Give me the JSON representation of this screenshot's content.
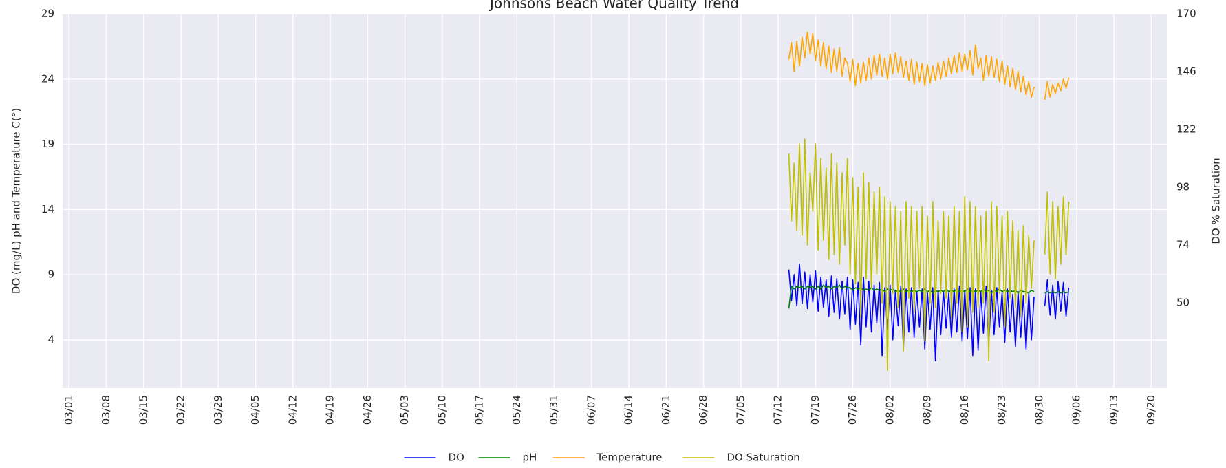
{
  "chart_data": {
    "type": "line",
    "title": "Johnsons Beach Water Quality Trend",
    "ylabel": "DO (mg/L) pH and Temperature C(°)",
    "y2label": "DO % Saturation",
    "grid": true,
    "legend": "bottom",
    "background": "#eaeaf2",
    "xlim": [
      -1.2,
      205.9
    ],
    "xticks": [
      {
        "value": 0,
        "label": "03/01"
      },
      {
        "value": 7,
        "label": "03/08"
      },
      {
        "value": 14,
        "label": "03/15"
      },
      {
        "value": 21,
        "label": "03/22"
      },
      {
        "value": 28,
        "label": "03/29"
      },
      {
        "value": 35,
        "label": "04/05"
      },
      {
        "value": 42,
        "label": "04/12"
      },
      {
        "value": 49,
        "label": "04/19"
      },
      {
        "value": 56,
        "label": "04/26"
      },
      {
        "value": 63,
        "label": "05/03"
      },
      {
        "value": 70,
        "label": "05/10"
      },
      {
        "value": 77,
        "label": "05/17"
      },
      {
        "value": 84,
        "label": "05/24"
      },
      {
        "value": 91,
        "label": "05/31"
      },
      {
        "value": 98,
        "label": "06/07"
      },
      {
        "value": 105,
        "label": "06/14"
      },
      {
        "value": 112,
        "label": "06/21"
      },
      {
        "value": 119,
        "label": "06/28"
      },
      {
        "value": 126,
        "label": "07/05"
      },
      {
        "value": 133,
        "label": "07/12"
      },
      {
        "value": 140,
        "label": "07/19"
      },
      {
        "value": 147,
        "label": "07/26"
      },
      {
        "value": 154,
        "label": "08/02"
      },
      {
        "value": 161,
        "label": "08/09"
      },
      {
        "value": 168,
        "label": "08/16"
      },
      {
        "value": 175,
        "label": "08/23"
      },
      {
        "value": 182,
        "label": "08/30"
      },
      {
        "value": 189,
        "label": "09/06"
      },
      {
        "value": 196,
        "label": "09/13"
      },
      {
        "value": 203,
        "label": "09/20"
      }
    ],
    "ylim": [
      0.3,
      29
    ],
    "yticks": [
      4,
      9,
      14,
      19,
      24,
      29
    ],
    "y2lim": [
      14.6,
      170
    ],
    "y2ticks": [
      50,
      74,
      98,
      122,
      146,
      170
    ],
    "x": [
      135,
      135.5,
      136,
      136.5,
      137,
      137.5,
      138,
      138.5,
      139,
      139.5,
      140,
      140.5,
      141,
      141.5,
      142,
      142.5,
      143,
      143.5,
      144,
      144.5,
      145,
      145.5,
      146,
      146.5,
      147,
      147.5,
      148,
      148.5,
      149,
      149.5,
      150,
      150.5,
      151,
      151.5,
      152,
      152.5,
      153,
      153.5,
      154,
      154.5,
      155,
      155.5,
      156,
      156.5,
      157,
      157.5,
      158,
      158.5,
      159,
      159.5,
      160,
      160.5,
      161,
      161.5,
      162,
      162.5,
      163,
      163.5,
      164,
      164.5,
      165,
      165.5,
      166,
      166.5,
      167,
      167.5,
      168,
      168.5,
      169,
      169.5,
      170,
      170.5,
      171,
      171.5,
      172,
      172.5,
      173,
      173.5,
      174,
      174.5,
      175,
      175.5,
      176,
      176.5,
      177,
      177.5,
      178,
      178.5,
      179,
      179.5,
      180,
      180.5,
      181,
      182,
      183,
      183.5,
      184,
      184.5,
      185,
      185.5,
      186,
      186.5,
      187,
      187.5
    ],
    "series": [
      {
        "name": "DO",
        "color": "#0000ff",
        "values": [
          9.4,
          7.0,
          9.0,
          6.6,
          9.8,
          6.8,
          9.2,
          6.4,
          9.0,
          6.9,
          9.3,
          6.2,
          8.8,
          6.5,
          8.6,
          5.8,
          8.9,
          6.1,
          8.7,
          5.6,
          8.5,
          6.0,
          8.8,
          4.8,
          8.6,
          5.2,
          8.4,
          3.6,
          8.8,
          5.0,
          8.5,
          4.6,
          8.2,
          5.3,
          8.4,
          2.8,
          8.0,
          4.8,
          8.2,
          4.0,
          7.8,
          5.1,
          8.1,
          3.4,
          7.9,
          4.6,
          8.0,
          4.2,
          7.7,
          5.0,
          7.9,
          3.3,
          7.6,
          4.8,
          8.0,
          2.4,
          7.8,
          4.4,
          7.7,
          4.9,
          7.6,
          4.2,
          7.9,
          4.6,
          8.1,
          3.9,
          7.8,
          4.1,
          8.0,
          2.8,
          7.9,
          3.2,
          7.7,
          4.5,
          8.1,
          3.6,
          7.8,
          4.4,
          8.0,
          5.0,
          7.6,
          3.8,
          7.9,
          4.6,
          7.5,
          3.5,
          7.7,
          4.2,
          7.4,
          3.3,
          7.6,
          4.0,
          7.3,
          null,
          6.6,
          8.6,
          5.9,
          8.2,
          5.6,
          8.5,
          6.2,
          8.4,
          5.8,
          8.0
        ]
      },
      {
        "name": "pH",
        "color": "#008000",
        "values": [
          6.4,
          8.1,
          7.9,
          8.1,
          8.0,
          8.1,
          7.9,
          8.1,
          8.0,
          8.1,
          7.9,
          8.1,
          7.9,
          8.2,
          8.0,
          8.1,
          7.9,
          8.1,
          8.0,
          8.2,
          7.9,
          8.1,
          8.0,
          8.0,
          7.8,
          8.0,
          7.9,
          8.0,
          7.8,
          7.9,
          7.8,
          8.0,
          7.8,
          7.9,
          7.8,
          7.9,
          7.7,
          7.9,
          7.8,
          7.9,
          7.7,
          7.8,
          7.7,
          7.9,
          7.7,
          7.8,
          7.7,
          7.8,
          7.7,
          7.8,
          7.7,
          7.9,
          7.7,
          7.8,
          7.6,
          7.8,
          7.7,
          7.8,
          7.7,
          7.9,
          7.7,
          7.8,
          7.7,
          7.9,
          7.7,
          7.8,
          7.7,
          7.9,
          7.7,
          7.8,
          7.7,
          7.8,
          7.7,
          7.9,
          7.7,
          7.8,
          7.6,
          7.8,
          7.7,
          7.9,
          7.7,
          7.8,
          7.7,
          7.8,
          7.7,
          7.8,
          7.6,
          7.8,
          7.7,
          7.7,
          7.6,
          7.8,
          7.7,
          null,
          7.6,
          7.7,
          7.6,
          7.7,
          7.6,
          7.7,
          7.6,
          7.7,
          7.6,
          7.7
        ]
      },
      {
        "name": "Temperature",
        "color": "#ffa500",
        "values": [
          25.5,
          26.8,
          24.6,
          26.9,
          25.0,
          27.2,
          25.6,
          27.6,
          25.9,
          27.5,
          25.4,
          27.0,
          25.0,
          26.8,
          24.8,
          26.5,
          24.5,
          26.3,
          24.6,
          26.4,
          24.2,
          25.6,
          25.2,
          23.8,
          25.5,
          23.5,
          25.2,
          23.7,
          25.3,
          23.9,
          25.6,
          24.0,
          25.8,
          24.3,
          25.9,
          24.2,
          25.6,
          24.0,
          25.9,
          24.4,
          26.0,
          24.5,
          25.7,
          24.1,
          25.4,
          23.9,
          25.5,
          23.6,
          25.3,
          23.8,
          25.2,
          23.5,
          25.1,
          23.7,
          25.0,
          23.9,
          25.3,
          24.0,
          25.4,
          24.2,
          25.6,
          24.4,
          25.8,
          24.5,
          26.0,
          24.6,
          25.9,
          24.7,
          26.2,
          24.3,
          26.6,
          24.8,
          25.6,
          23.9,
          25.8,
          24.2,
          25.7,
          24.1,
          25.5,
          23.8,
          25.4,
          23.6,
          25.0,
          23.4,
          24.8,
          23.2,
          24.6,
          23.0,
          24.2,
          22.8,
          23.8,
          22.6,
          23.4,
          null,
          22.4,
          23.8,
          22.6,
          23.6,
          22.9,
          23.7,
          23.1,
          24.0,
          23.3,
          24.1
        ]
      },
      {
        "name": "DO Saturation",
        "color": "#bfbf00",
        "axis": "y2",
        "values": [
          112,
          84,
          108,
          80,
          116,
          78,
          118,
          74,
          104,
          88,
          116,
          72,
          110,
          76,
          106,
          68,
          112,
          70,
          108,
          66,
          104,
          74,
          110,
          62,
          102,
          58,
          98,
          44,
          104,
          60,
          100,
          56,
          96,
          62,
          98,
          50,
          94,
          22,
          92,
          54,
          90,
          48,
          88,
          30,
          92,
          52,
          90,
          46,
          88,
          56,
          90,
          34,
          86,
          50,
          92,
          48,
          84,
          54,
          88,
          52,
          86,
          44,
          90,
          50,
          88,
          38,
          94,
          40,
          92,
          46,
          90,
          48,
          86,
          50,
          88,
          26,
          92,
          46,
          90,
          54,
          86,
          40,
          88,
          52,
          84,
          48,
          80,
          44,
          82,
          50,
          78,
          56,
          76,
          null,
          70,
          96,
          62,
          92,
          60,
          90,
          66,
          94,
          70,
          92
        ]
      }
    ]
  }
}
